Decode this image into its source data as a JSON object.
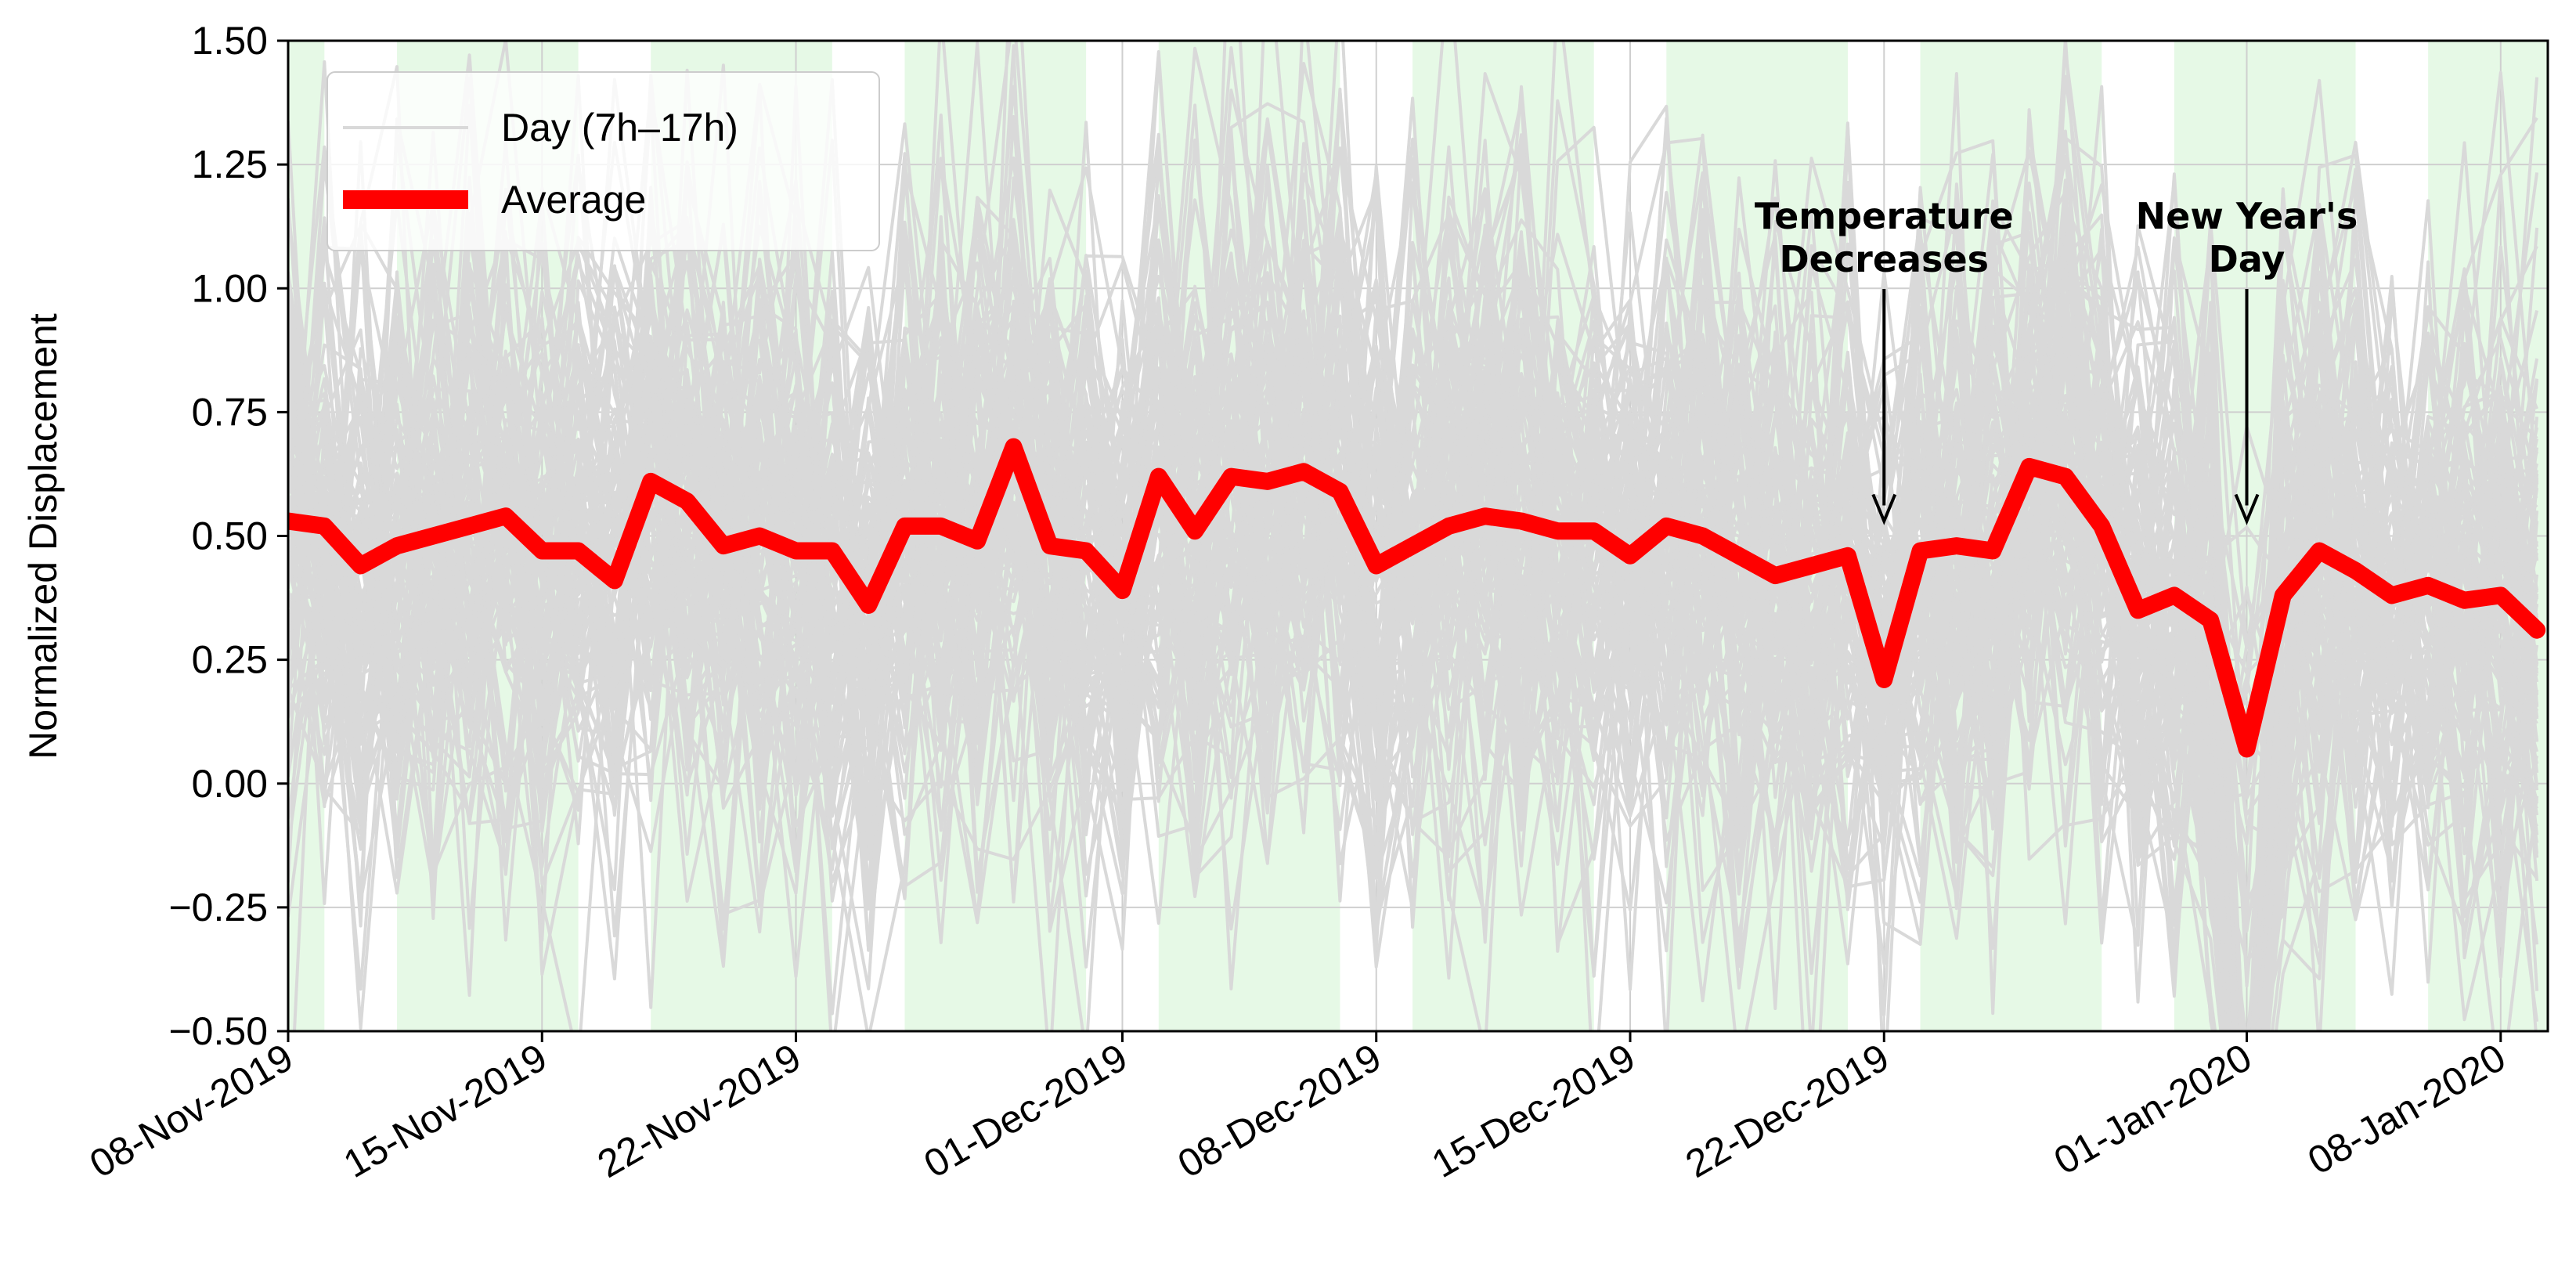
{
  "chart_data": {
    "type": "line",
    "ylabel": "Normalized Displacement",
    "ylim": [
      -0.5,
      1.5
    ],
    "yticks": [
      -0.5,
      -0.25,
      0.0,
      0.25,
      0.5,
      0.75,
      1.0,
      1.25,
      1.5
    ],
    "ytick_labels": [
      "−0.50",
      "−0.25",
      "0.00",
      "0.25",
      "0.50",
      "0.75",
      "1.00",
      "1.25",
      "1.50"
    ],
    "xlim_days": [
      0,
      62.3
    ],
    "xtick_days": [
      0,
      7,
      14,
      23,
      30,
      37,
      44,
      54,
      61
    ],
    "xtick_labels": [
      "08-Nov-2019",
      "15-Nov-2019",
      "22-Nov-2019",
      "01-Dec-2019",
      "08-Dec-2019",
      "15-Dec-2019",
      "22-Dec-2019",
      "01-Jan-2020",
      "08-Jan-2020"
    ],
    "grid": true,
    "legend": {
      "placement": "top-left",
      "entries": [
        {
          "label": "Day (7h–17h)",
          "color": "#d9d9d9"
        },
        {
          "label": "Average",
          "color": "#ff0000"
        }
      ]
    },
    "weekday_shading_color": "#e6f9e6",
    "weekday_bands_days": [
      [
        0,
        1
      ],
      [
        3,
        8
      ],
      [
        10,
        15
      ],
      [
        17,
        22
      ],
      [
        24,
        29
      ],
      [
        31,
        36
      ],
      [
        38,
        43
      ],
      [
        45,
        50
      ],
      [
        52,
        57
      ],
      [
        59,
        62.3
      ]
    ],
    "series": [
      {
        "name": "Average",
        "color": "#ff0000",
        "x_days": [
          0,
          1,
          2,
          3,
          4,
          5,
          6,
          7,
          8,
          9,
          10,
          11,
          12,
          13,
          14,
          15,
          16,
          17,
          18,
          19,
          20,
          21,
          22,
          23,
          24,
          25,
          26,
          27,
          28,
          29,
          30,
          31,
          32,
          33,
          34,
          35,
          36,
          37,
          38,
          39,
          40,
          41,
          42,
          43,
          44,
          45,
          46,
          47,
          48,
          49,
          50,
          51,
          52,
          53,
          54,
          55,
          56,
          57,
          58,
          59,
          60,
          61,
          62
        ],
        "values": [
          0.53,
          0.52,
          0.44,
          0.48,
          0.5,
          0.52,
          0.54,
          0.47,
          0.47,
          0.41,
          0.61,
          0.57,
          0.48,
          0.5,
          0.47,
          0.47,
          0.36,
          0.52,
          0.52,
          0.49,
          0.68,
          0.48,
          0.47,
          0.39,
          0.62,
          0.51,
          0.62,
          0.61,
          0.63,
          0.59,
          0.44,
          0.48,
          0.52,
          0.54,
          0.53,
          0.51,
          0.51,
          0.46,
          0.52,
          0.5,
          0.46,
          0.42,
          0.44,
          0.46,
          0.21,
          0.47,
          0.48,
          0.47,
          0.64,
          0.62,
          0.52,
          0.35,
          0.38,
          0.33,
          0.07,
          0.38,
          0.47,
          0.43,
          0.38,
          0.4,
          0.37,
          0.38,
          0.31
        ]
      }
    ],
    "annotations": [
      {
        "lines": [
          "Temperature",
          "Decreases"
        ],
        "x_day": 44,
        "arrow_tip_value": 0.53
      },
      {
        "lines": [
          "New Year's",
          "Day"
        ],
        "x_day": 54,
        "arrow_tip_value": 0.53
      }
    ]
  }
}
